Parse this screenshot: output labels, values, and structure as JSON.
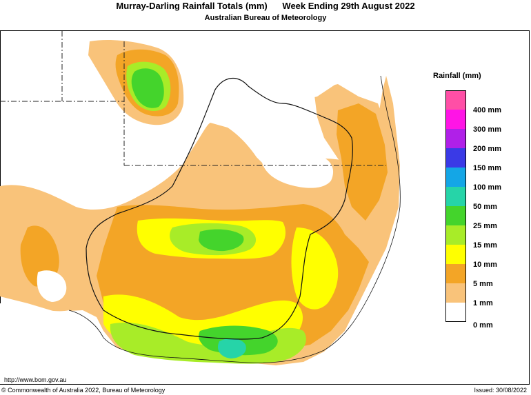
{
  "header": {
    "title": "Murray-Darling Rainfall Totals (mm)      Week Ending 29th August 2022",
    "subtitle": "Australian Bureau of Meteorology"
  },
  "legend": {
    "title": "Rainfall (mm)",
    "items": [
      {
        "label": "400 mm",
        "color": "#ff4fa6"
      },
      {
        "label": "300 mm",
        "color": "#ff14e6"
      },
      {
        "label": "200 mm",
        "color": "#b020e8"
      },
      {
        "label": "150 mm",
        "color": "#3a3ae6"
      },
      {
        "label": "100 mm",
        "color": "#14a6e6"
      },
      {
        "label": "50 mm",
        "color": "#26d4a8"
      },
      {
        "label": "25 mm",
        "color": "#44d42c"
      },
      {
        "label": "15 mm",
        "color": "#a8ec28"
      },
      {
        "label": "10 mm",
        "color": "#ffff00"
      },
      {
        "label": "5 mm",
        "color": "#f3a526"
      },
      {
        "label": "1 mm",
        "color": "#f9c37a"
      },
      {
        "label": "0 mm",
        "color": "#ffffff"
      }
    ]
  },
  "footer": {
    "url": "http://www.bom.gov.au",
    "copyright": "© Commonwealth of Australia 2022, Bureau of Meteorology",
    "issued": "Issued: 30/08/2022"
  }
}
